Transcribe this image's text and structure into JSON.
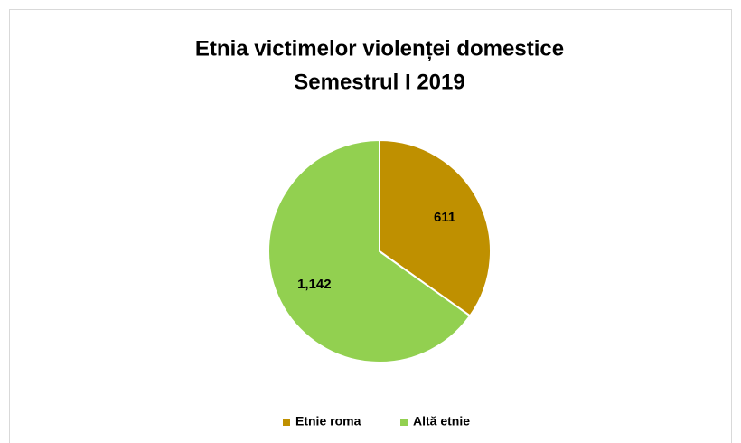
{
  "chart_data": {
    "type": "pie",
    "title": [
      "Etnia victimelor violenței domestice",
      "Semestrul I 2019"
    ],
    "categories": [
      "Etnie roma",
      "Altă etnie"
    ],
    "values": [
      611,
      1142
    ],
    "value_labels": [
      "611",
      "1,142"
    ],
    "colors": [
      "#bf9000",
      "#92d050"
    ],
    "legend": "bottom"
  }
}
